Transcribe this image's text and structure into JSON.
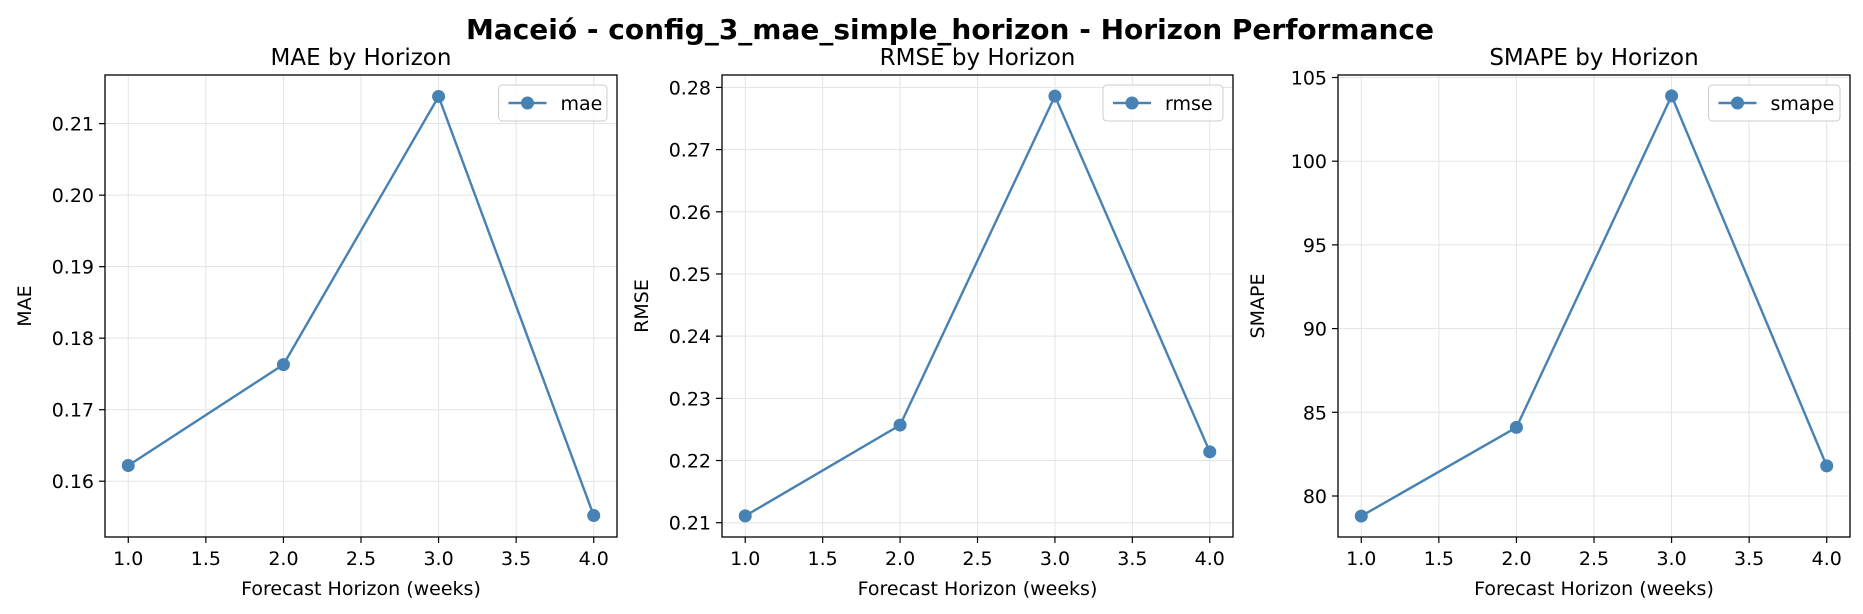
{
  "suptitle": "Maceió - config_3_mae_simple_horizon - Horizon Performance",
  "colors": {
    "line": "#4682b4",
    "grid": "#e3e3e3",
    "axis": "#000000"
  },
  "chart_data": [
    {
      "type": "line",
      "title": "MAE by Horizon",
      "xlabel": "Forecast Horizon (weeks)",
      "ylabel": "MAE",
      "x": [
        1.0,
        2.0,
        3.0,
        4.0
      ],
      "series": [
        {
          "name": "mae",
          "values": [
            0.1622,
            0.1763,
            0.2138,
            0.1552
          ]
        }
      ],
      "xlim": [
        0.85,
        4.15
      ],
      "ylim": [
        0.1522,
        0.2168
      ],
      "xticks": [
        1.0,
        1.5,
        2.0,
        2.5,
        3.0,
        3.5,
        4.0
      ],
      "xtick_labels": [
        "1.0",
        "1.5",
        "2.0",
        "2.5",
        "3.0",
        "3.5",
        "4.0"
      ],
      "yticks": [
        0.16,
        0.17,
        0.18,
        0.19,
        0.2,
        0.21
      ],
      "ytick_labels": [
        "0.16",
        "0.17",
        "0.18",
        "0.19",
        "0.20",
        "0.21"
      ],
      "grid": true,
      "legend": "top-right"
    },
    {
      "type": "line",
      "title": "RMSE by Horizon",
      "xlabel": "Forecast Horizon (weeks)",
      "ylabel": "RMSE",
      "x": [
        1.0,
        2.0,
        3.0,
        4.0
      ],
      "series": [
        {
          "name": "rmse",
          "values": [
            0.2111,
            0.2257,
            0.2786,
            0.2214
          ]
        }
      ],
      "xlim": [
        0.85,
        4.15
      ],
      "ylim": [
        0.2077,
        0.282
      ],
      "xticks": [
        1.0,
        1.5,
        2.0,
        2.5,
        3.0,
        3.5,
        4.0
      ],
      "xtick_labels": [
        "1.0",
        "1.5",
        "2.0",
        "2.5",
        "3.0",
        "3.5",
        "4.0"
      ],
      "yticks": [
        0.21,
        0.22,
        0.23,
        0.24,
        0.25,
        0.26,
        0.27,
        0.28
      ],
      "ytick_labels": [
        "0.21",
        "0.22",
        "0.23",
        "0.24",
        "0.25",
        "0.26",
        "0.27",
        "0.28"
      ],
      "grid": true,
      "legend": "top-right"
    },
    {
      "type": "line",
      "title": "SMAPE by Horizon",
      "xlabel": "Forecast Horizon (weeks)",
      "ylabel": "SMAPE",
      "x": [
        1.0,
        2.0,
        3.0,
        4.0
      ],
      "series": [
        {
          "name": "smape",
          "values": [
            78.8,
            84.1,
            103.9,
            81.8
          ]
        }
      ],
      "xlim": [
        0.85,
        4.15
      ],
      "ylim": [
        77.55,
        105.15
      ],
      "xticks": [
        1.0,
        1.5,
        2.0,
        2.5,
        3.0,
        3.5,
        4.0
      ],
      "xtick_labels": [
        "1.0",
        "1.5",
        "2.0",
        "2.5",
        "3.0",
        "3.5",
        "4.0"
      ],
      "yticks": [
        80,
        85,
        90,
        95,
        100,
        105
      ],
      "ytick_labels": [
        "80",
        "85",
        "90",
        "95",
        "100",
        "105"
      ],
      "grid": true,
      "legend": "top-right"
    }
  ]
}
